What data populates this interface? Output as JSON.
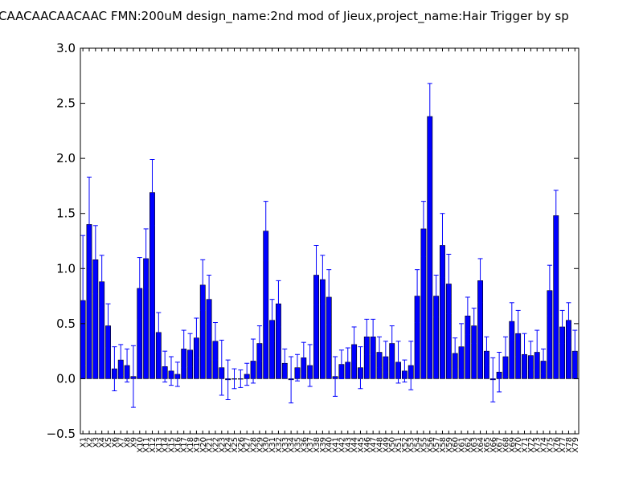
{
  "chart_data": {
    "type": "bar",
    "title": "CAACAACAACAAC  FMN:200uM  design_name:2nd mod of Jieux,project_name:Hair Trigger by sp",
    "xlabel": "",
    "ylabel": "",
    "ylim": [
      -0.5,
      3.0
    ],
    "yticks": [
      "−0.5",
      "0.0",
      "0.5",
      "1.0",
      "1.5",
      "2.0",
      "2.5",
      "3.0"
    ],
    "ytick_values": [
      -0.5,
      0.0,
      0.5,
      1.0,
      1.5,
      2.0,
      2.5,
      3.0
    ],
    "grid": false,
    "bar_color": "#0000ff",
    "error_color": "#0000ff",
    "categories": [
      "X1",
      "X2",
      "X3",
      "X4",
      "X5",
      "X6",
      "X7",
      "X8",
      "X9",
      "X10",
      "X11",
      "X12",
      "X13",
      "X14",
      "X15",
      "X16",
      "X17",
      "X18",
      "X19",
      "X20",
      "X21",
      "X22",
      "X23",
      "X24",
      "X25",
      "X26",
      "X27",
      "X28",
      "X29",
      "X30",
      "X31",
      "X32",
      "X33",
      "X34",
      "X35",
      "X36",
      "X37",
      "X38",
      "X39",
      "X40",
      "X41",
      "X42",
      "X43",
      "X44",
      "X45",
      "X46",
      "X47",
      "X48",
      "X49",
      "X50",
      "X51",
      "X52",
      "X53",
      "X54",
      "X55",
      "X56",
      "X57",
      "X58",
      "X59",
      "X60",
      "X61",
      "X62",
      "X63",
      "X64",
      "X65",
      "X66",
      "X67",
      "X68",
      "X69",
      "X70",
      "X71",
      "X72",
      "X73",
      "X74",
      "X75",
      "X76",
      "X77",
      "X78",
      "X79"
    ],
    "values": [
      0.71,
      1.4,
      1.08,
      0.88,
      0.48,
      0.09,
      0.17,
      0.12,
      0.02,
      0.82,
      1.09,
      1.69,
      0.42,
      0.11,
      0.07,
      0.04,
      0.27,
      0.26,
      0.37,
      0.85,
      0.72,
      0.34,
      0.1,
      -0.01,
      0.0,
      0.0,
      0.04,
      0.16,
      0.32,
      1.34,
      0.53,
      0.68,
      0.14,
      -0.01,
      0.1,
      0.19,
      0.12,
      0.94,
      0.9,
      0.74,
      0.02,
      0.13,
      0.15,
      0.31,
      0.1,
      0.38,
      0.38,
      0.24,
      0.2,
      0.32,
      0.15,
      0.07,
      0.12,
      0.75,
      1.36,
      2.38,
      0.75,
      1.21,
      0.86,
      0.23,
      0.29,
      0.57,
      0.48,
      0.89,
      0.25,
      -0.01,
      0.06,
      0.2,
      0.52,
      0.41,
      0.22,
      0.21,
      0.24,
      0.16,
      0.8,
      1.48,
      0.47,
      0.53,
      0.25
    ],
    "errors": [
      0.59,
      0.43,
      0.31,
      0.24,
      0.2,
      0.2,
      0.14,
      0.15,
      0.28,
      0.28,
      0.27,
      0.3,
      0.18,
      0.14,
      0.13,
      0.11,
      0.17,
      0.15,
      0.18,
      0.23,
      0.22,
      0.17,
      0.25,
      0.18,
      0.09,
      0.08,
      0.1,
      0.2,
      0.16,
      0.27,
      0.19,
      0.21,
      0.13,
      0.21,
      0.12,
      0.14,
      0.19,
      0.27,
      0.22,
      0.25,
      0.18,
      0.13,
      0.13,
      0.16,
      0.19,
      0.16,
      0.16,
      0.14,
      0.14,
      0.16,
      0.19,
      0.1,
      0.22,
      0.24,
      0.25,
      0.3,
      0.19,
      0.29,
      0.27,
      0.14,
      0.21,
      0.17,
      0.16,
      0.2,
      0.13,
      0.2,
      0.18,
      0.18,
      0.17,
      0.21,
      0.19,
      0.13,
      0.2,
      0.11,
      0.23,
      0.23,
      0.15,
      0.16,
      0.19
    ]
  }
}
